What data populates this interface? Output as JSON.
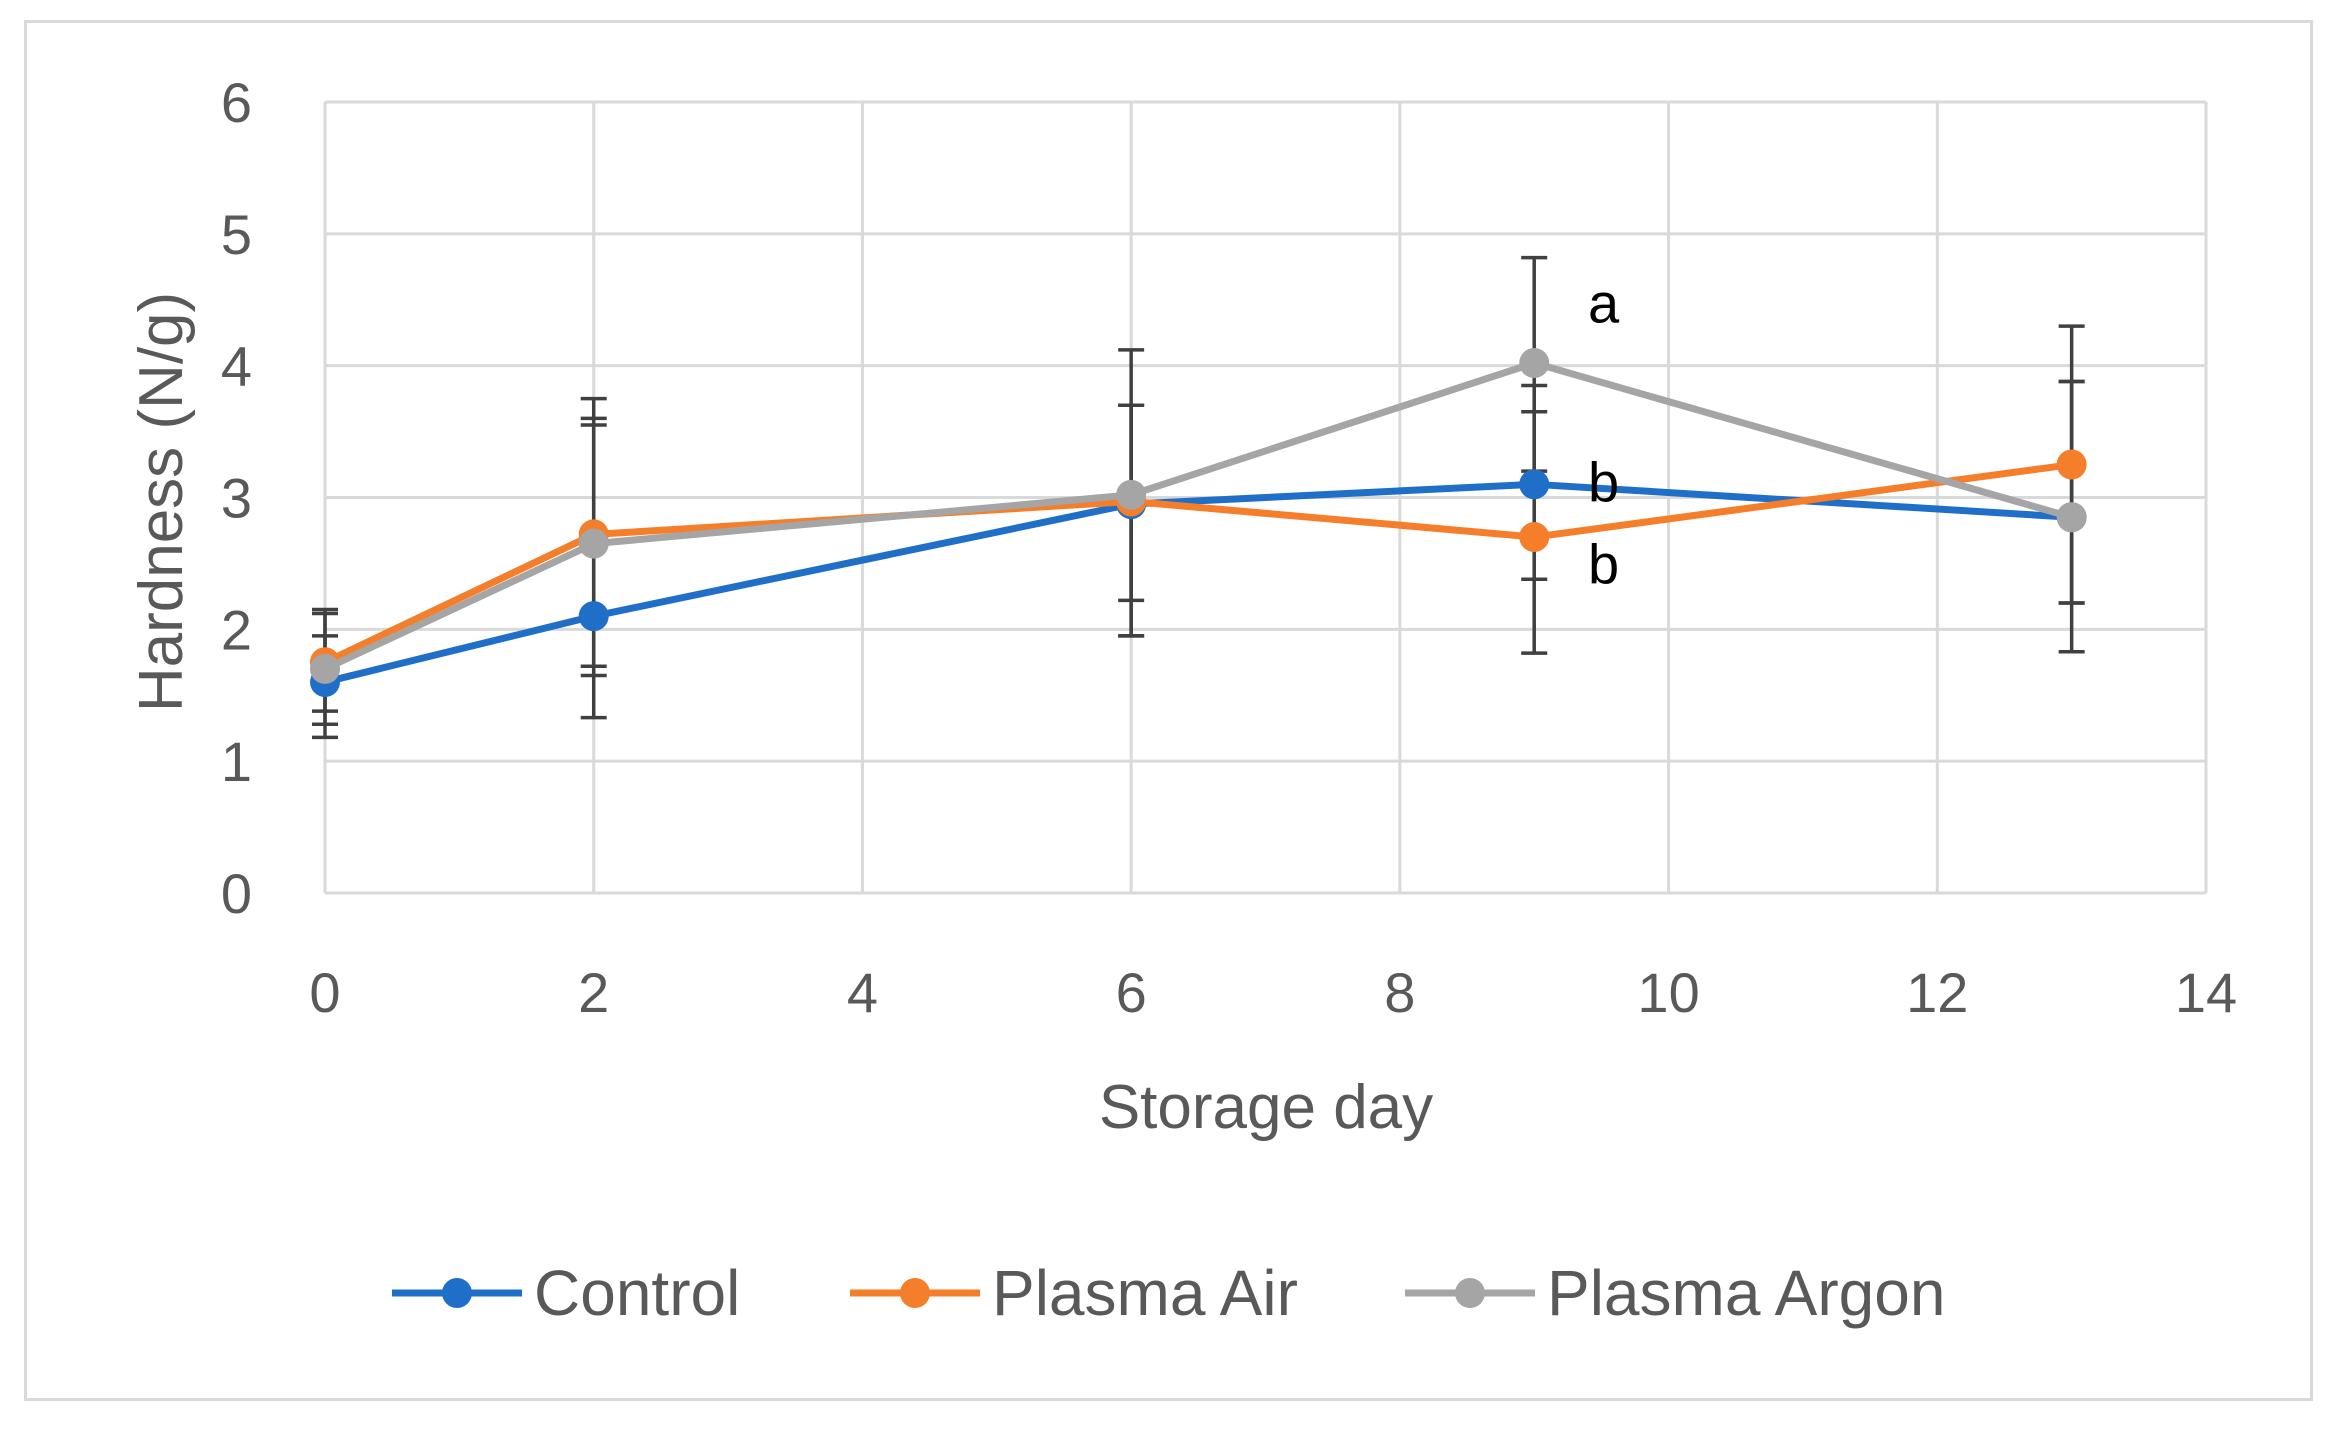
{
  "chart_data": {
    "type": "line",
    "title": "",
    "xlabel": "Storage day",
    "ylabel": "Hardness (N/g)",
    "xlim": [
      0,
      14
    ],
    "ylim": [
      0,
      6
    ],
    "xticks": [
      0,
      2,
      4,
      6,
      8,
      10,
      12,
      14
    ],
    "yticks": [
      0,
      1,
      2,
      3,
      4,
      5,
      6
    ],
    "grid": true,
    "legend_position": "bottom",
    "x": [
      0,
      2,
      6,
      9,
      13
    ],
    "series": [
      {
        "name": "Control",
        "color": "#1f6fc8",
        "values": [
          1.6,
          2.1,
          2.95,
          3.1,
          2.85
        ],
        "error_low": [
          1.28,
          1.65,
          2.22,
          2.38,
          2.2
        ],
        "error_high": [
          1.95,
          3.55,
          3.7,
          3.65,
          3.88
        ]
      },
      {
        "name": "Plasma Air",
        "color": "#f57e2a",
        "values": [
          1.75,
          2.72,
          2.97,
          2.7,
          3.25
        ],
        "error_low": [
          1.38,
          1.72,
          1.95,
          1.82,
          2.2
        ],
        "error_high": [
          2.15,
          3.75,
          4.12,
          3.85,
          4.3
        ]
      },
      {
        "name": "Plasma Argon",
        "color": "#a5a5a5",
        "values": [
          1.7,
          2.65,
          3.02,
          4.02,
          2.85
        ],
        "error_low": [
          1.18,
          1.33,
          1.95,
          3.2,
          1.83
        ],
        "error_high": [
          2.12,
          3.6,
          3.7,
          4.82,
          3.88
        ]
      }
    ],
    "annotations": [
      {
        "text": "a",
        "x": 9.4,
        "y": 4.48
      },
      {
        "text": "b",
        "x": 9.4,
        "y": 3.12
      },
      {
        "text": "b",
        "x": 9.4,
        "y": 2.5
      }
    ],
    "axis_color": "#595959",
    "grid_color": "#d9d9d9",
    "errorbar_color": "#404040"
  }
}
